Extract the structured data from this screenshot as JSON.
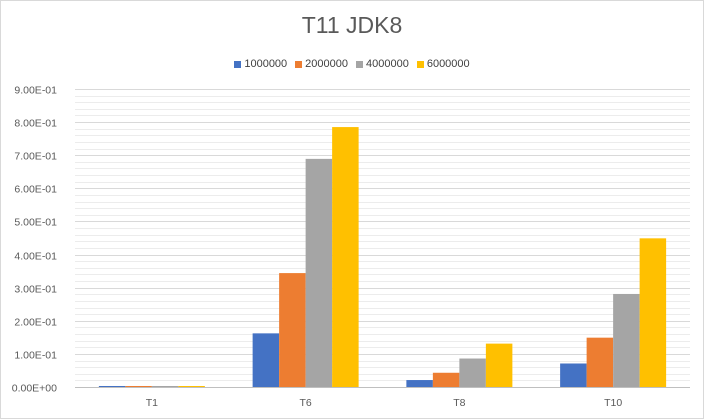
{
  "chart_data": {
    "type": "bar",
    "title": "T11 JDK8",
    "categories": [
      "T1",
      "T6",
      "T8",
      "T10"
    ],
    "series": [
      {
        "name": "1000000",
        "color": "#4472C4",
        "values": [
          0.003,
          0.162,
          0.021,
          0.071
        ]
      },
      {
        "name": "2000000",
        "color": "#ED7D31",
        "values": [
          0.003,
          0.344,
          0.043,
          0.149
        ]
      },
      {
        "name": "4000000",
        "color": "#A5A5A5",
        "values": [
          0.003,
          0.689,
          0.086,
          0.281
        ]
      },
      {
        "name": "6000000",
        "color": "#FFC000",
        "values": [
          0.003,
          0.785,
          0.131,
          0.449
        ]
      }
    ],
    "ylim": [
      0,
      0.9
    ],
    "yticks": [
      0,
      0.1,
      0.2,
      0.3,
      0.4,
      0.5,
      0.6,
      0.7,
      0.8,
      0.9
    ],
    "ytick_labels": [
      "0.00E+00",
      "1.00E-01",
      "2.00E-01",
      "3.00E-01",
      "4.00E-01",
      "5.00E-01",
      "6.00E-01",
      "7.00E-01",
      "8.00E-01",
      "9.00E-01"
    ],
    "minor_grid_step": 0.02,
    "grid": true,
    "legend_position": "top"
  }
}
